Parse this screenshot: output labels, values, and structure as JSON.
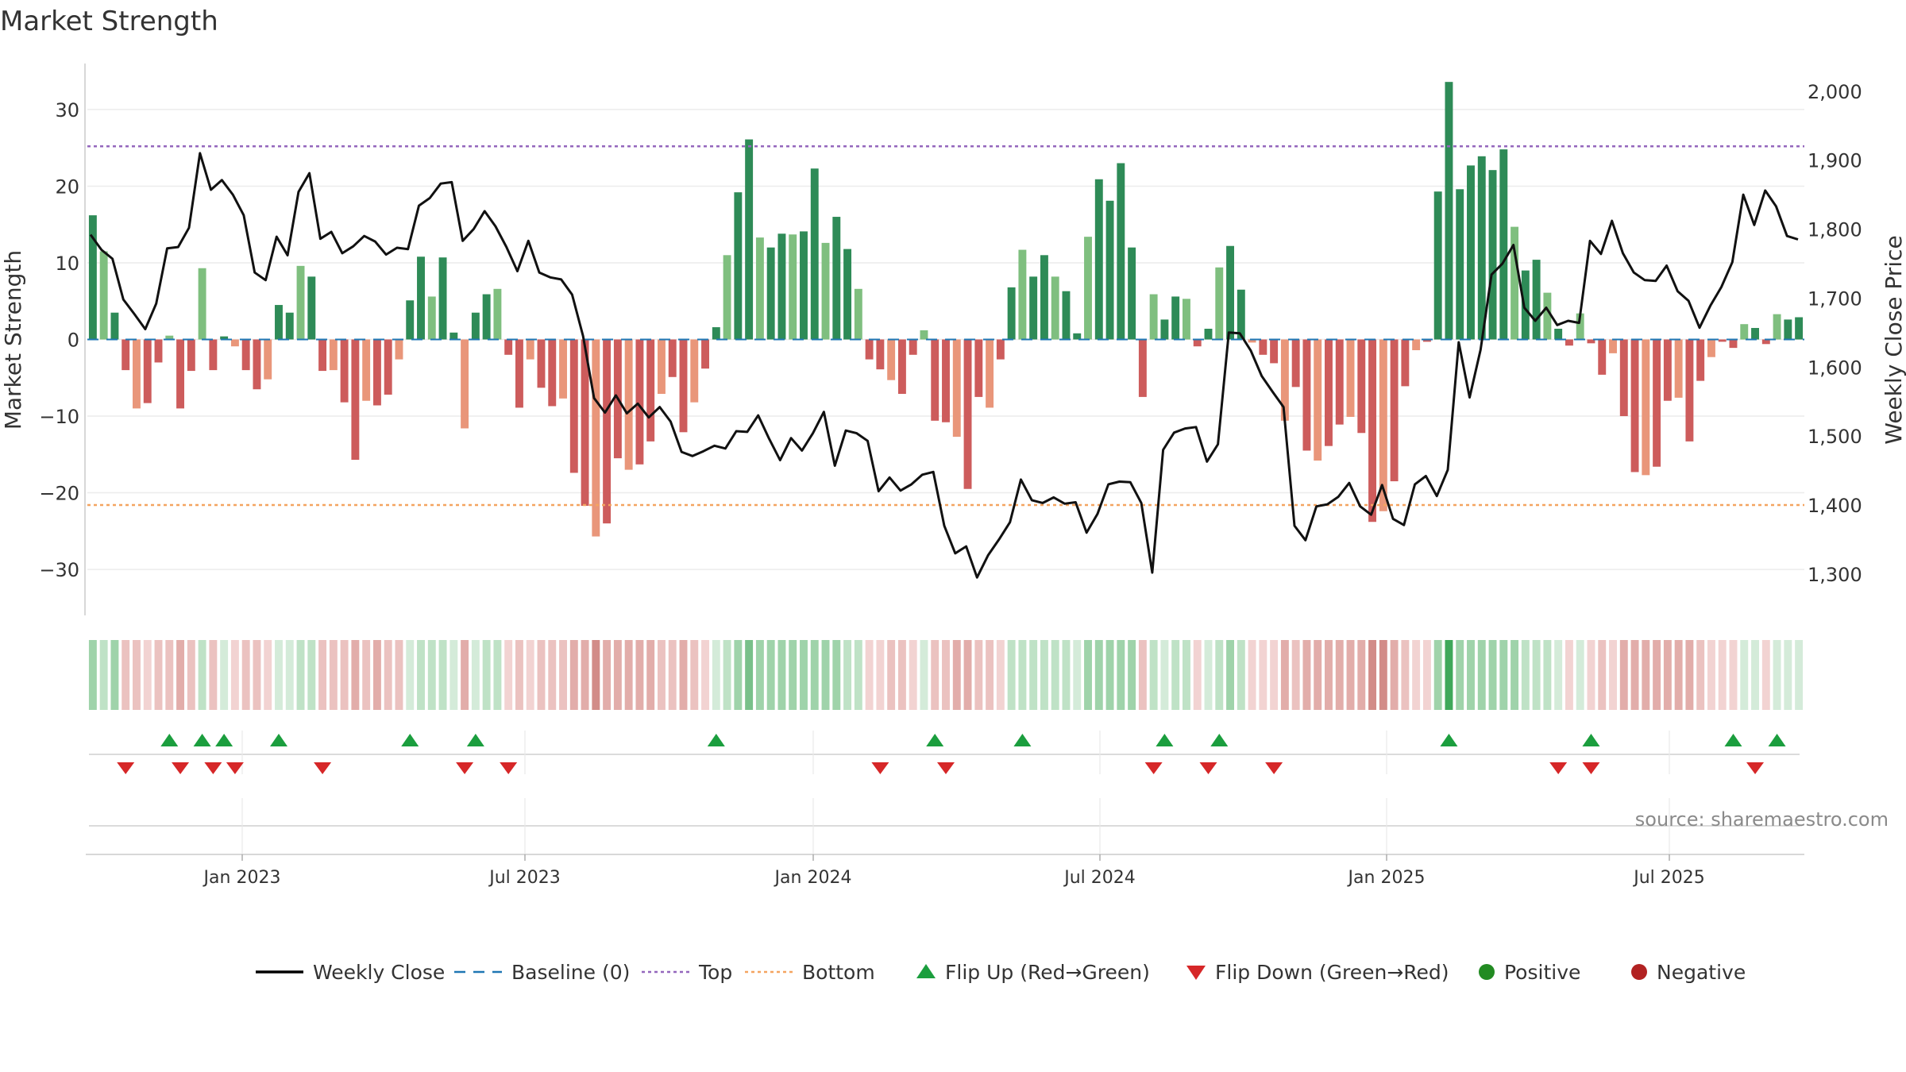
{
  "chart_data": {
    "type": "bar+line",
    "title": "Market Strength",
    "ylabel_left": "Market Strength",
    "ylabel_right": "Weekly Close Price",
    "ylim_left": [
      -36,
      36
    ],
    "ylim_right": [
      1240,
      2040
    ],
    "left_ticks": [
      "30",
      "20",
      "10",
      "0",
      "−10",
      "−20",
      "−30"
    ],
    "right_ticks": [
      "2,000",
      "1,900",
      "1,800",
      "1,700",
      "1,600",
      "1,500",
      "1,400",
      "1,300"
    ],
    "x_ticks": [
      "Jan 2023",
      "Jul 2023",
      "Jan 2024",
      "Jul 2024",
      "Jan 2025",
      "Jul 2025"
    ],
    "top_threshold": 25.2,
    "bottom_threshold": -21.6,
    "source": "source: sharemaestro.com",
    "strength": [
      16.2,
      11.5,
      3.5,
      -4,
      -9,
      -8.3,
      -3,
      0.5,
      -9,
      -4.1,
      9.3,
      -4,
      0.4,
      -0.9,
      -4,
      -6.5,
      -5.2,
      4.5,
      3.5,
      9.6,
      8.2,
      -4.1,
      -4,
      -8.2,
      -15.7,
      -8,
      -8.6,
      -7.2,
      -2.6,
      5.1,
      10.8,
      5.6,
      10.7,
      0.9,
      -11.6,
      3.5,
      5.9,
      6.6,
      -2,
      -8.9,
      -2.6,
      -6.3,
      -8.7,
      -7.7,
      -17.4,
      -21.7,
      -25.7,
      -24,
      -15.5,
      -17,
      -16.3,
      -13.3,
      -7.1,
      -4.9,
      -12.1,
      -8.2,
      -3.8,
      1.6,
      11,
      19.2,
      26.1,
      13.3,
      12,
      13.8,
      13.7,
      14.1,
      22.3,
      12.6,
      16,
      11.8,
      6.6,
      -2.6,
      -3.9,
      -5.3,
      -7.1,
      -2,
      1.2,
      -10.6,
      -10.8,
      -12.7,
      -19.5,
      -7.5,
      -8.9,
      -2.6,
      6.8,
      11.7,
      8.2,
      11,
      8.2,
      6.3,
      0.8,
      13.4,
      20.9,
      18.1,
      23,
      12,
      -7.5,
      5.9,
      2.6,
      5.6,
      5.3,
      -0.9,
      1.4,
      9.4,
      12.2,
      6.5,
      -0.4,
      -2,
      -3.1,
      -10.6,
      -6.2,
      -14.5,
      -15.8,
      -13.9,
      -11.1,
      -10.1,
      -12.2,
      -23.8,
      -22.4,
      -18.5,
      -6.1,
      -1.4,
      -0.3,
      19.3,
      33.6,
      19.6,
      22.7,
      23.9,
      22.1,
      24.8,
      14.7,
      9,
      10.4,
      6.1,
      1.4,
      -0.8,
      3.4,
      -0.5,
      -4.6,
      -1.8,
      -10,
      -17.3,
      -17.7,
      -16.6,
      -8,
      -7.6,
      -13.3,
      -5.4,
      -2.3,
      -0.3,
      -1.1,
      2,
      1.5,
      -0.6,
      3.3,
      2.6,
      2.9
    ],
    "weekly_close": [
      1792,
      1770,
      1757,
      1698,
      1677,
      1655,
      1692,
      1772,
      1774,
      1802,
      1910,
      1857,
      1871,
      1850,
      1820,
      1737,
      1726,
      1789,
      1762,
      1854,
      1881,
      1786,
      1796,
      1765,
      1775,
      1790,
      1782,
      1763,
      1773,
      1771,
      1834,
      1845,
      1866,
      1868,
      1783,
      1800,
      1826,
      1804,
      1774,
      1739,
      1783,
      1737,
      1730,
      1727,
      1705,
      1645,
      1555,
      1534,
      1559,
      1533,
      1547,
      1527,
      1542,
      1521,
      1477,
      1471,
      1478,
      1486,
      1482,
      1507,
      1506,
      1530,
      1496,
      1465,
      1497,
      1479,
      1504,
      1535,
      1457,
      1508,
      1504,
      1493,
      1420,
      1440,
      1421,
      1430,
      1444,
      1448,
      1370,
      1330,
      1340,
      1295,
      1327,
      1350,
      1375,
      1437,
      1407,
      1403,
      1411,
      1402,
      1404,
      1360,
      1387,
      1430,
      1434,
      1433,
      1403,
      1302,
      1480,
      1505,
      1511,
      1513,
      1463,
      1488,
      1650,
      1649,
      1624,
      1587,
      1564,
      1542,
      1370,
      1349,
      1398,
      1401,
      1412,
      1432,
      1398,
      1386,
      1429,
      1380,
      1371,
      1430,
      1442,
      1413,
      1451,
      1636,
      1556,
      1625,
      1734,
      1750,
      1777,
      1686,
      1667,
      1686,
      1661,
      1667,
      1664,
      1783,
      1764,
      1812,
      1765,
      1737,
      1726,
      1725,
      1747,
      1710,
      1696,
      1657,
      1689,
      1716,
      1752,
      1850,
      1806,
      1856,
      1833,
      1790,
      1785
    ],
    "weekly_close_range": {
      "start": "2022-10",
      "end": "2025-09"
    },
    "regime_strip": [
      3,
      2,
      3,
      -2,
      -2,
      -1,
      -2,
      -2,
      -3,
      -2,
      2,
      -2,
      1,
      -1,
      -2,
      -2,
      -1,
      1,
      1,
      2,
      2,
      -2,
      -2,
      -2,
      -3,
      -2,
      -3,
      -2,
      -2,
      1,
      2,
      2,
      2,
      1,
      -3,
      1,
      2,
      2,
      -1,
      -2,
      -1,
      -2,
      -2,
      -2,
      -3,
      -3,
      -4,
      -3,
      -3,
      -3,
      -3,
      -3,
      -2,
      -2,
      -3,
      -2,
      -1,
      1,
      2,
      3,
      4,
      3,
      3,
      3,
      3,
      3,
      3,
      3,
      3,
      2,
      2,
      -1,
      -1,
      -2,
      -2,
      -1,
      1,
      -2,
      -2,
      -3,
      -3,
      -2,
      -2,
      -1,
      2,
      2,
      2,
      2,
      2,
      2,
      1,
      3,
      3,
      3,
      3,
      3,
      -2,
      2,
      1,
      2,
      2,
      -1,
      1,
      2,
      3,
      2,
      -1,
      -1,
      -1,
      -3,
      -2,
      -3,
      -3,
      -3,
      -3,
      -3,
      -3,
      -4,
      -4,
      -3,
      -2,
      -1,
      -1,
      3,
      5,
      3,
      3,
      3,
      3,
      3,
      3,
      2,
      2,
      2,
      1,
      -1,
      1,
      -1,
      -2,
      -1,
      -3,
      -3,
      -3,
      -3,
      -3,
      -3,
      -3,
      -2,
      -1,
      -1,
      -1,
      1,
      1,
      -1,
      1,
      1,
      1
    ],
    "flip_up_weeks": [
      7,
      10,
      12,
      17,
      29,
      35,
      57,
      77,
      85,
      98,
      103,
      124,
      137,
      150,
      154
    ],
    "flip_down_weeks": [
      3,
      8,
      11,
      13,
      21,
      34,
      38,
      72,
      78,
      97,
      102,
      108,
      134,
      137,
      152
    ],
    "legend": [
      {
        "label": "Weekly Close",
        "kind": "line",
        "color": "#000000"
      },
      {
        "label": "Baseline (0)",
        "kind": "dash",
        "color": "#1f77b4"
      },
      {
        "label": "Top",
        "kind": "dot",
        "color": "#9467bd"
      },
      {
        "label": "Bottom",
        "kind": "dot",
        "color": "#f4a460"
      },
      {
        "label": "Flip Up (Red→Green)",
        "kind": "tri-up",
        "color": "#1b9e3e"
      },
      {
        "label": "Flip Down (Green→Red)",
        "kind": "tri-down",
        "color": "#d62728"
      },
      {
        "label": "Positive",
        "kind": "circle",
        "color": "#228b22"
      },
      {
        "label": "Negative",
        "kind": "circle",
        "color": "#b22222"
      }
    ],
    "colors": {
      "green_dark": "#2e8b57",
      "green_light": "#7fbf7f",
      "red_dark": "#cd5c5c",
      "red_light": "#e9967a",
      "top_line": "#9467bd",
      "bottom_line": "#f4a460",
      "baseline": "#1f77b4"
    }
  }
}
